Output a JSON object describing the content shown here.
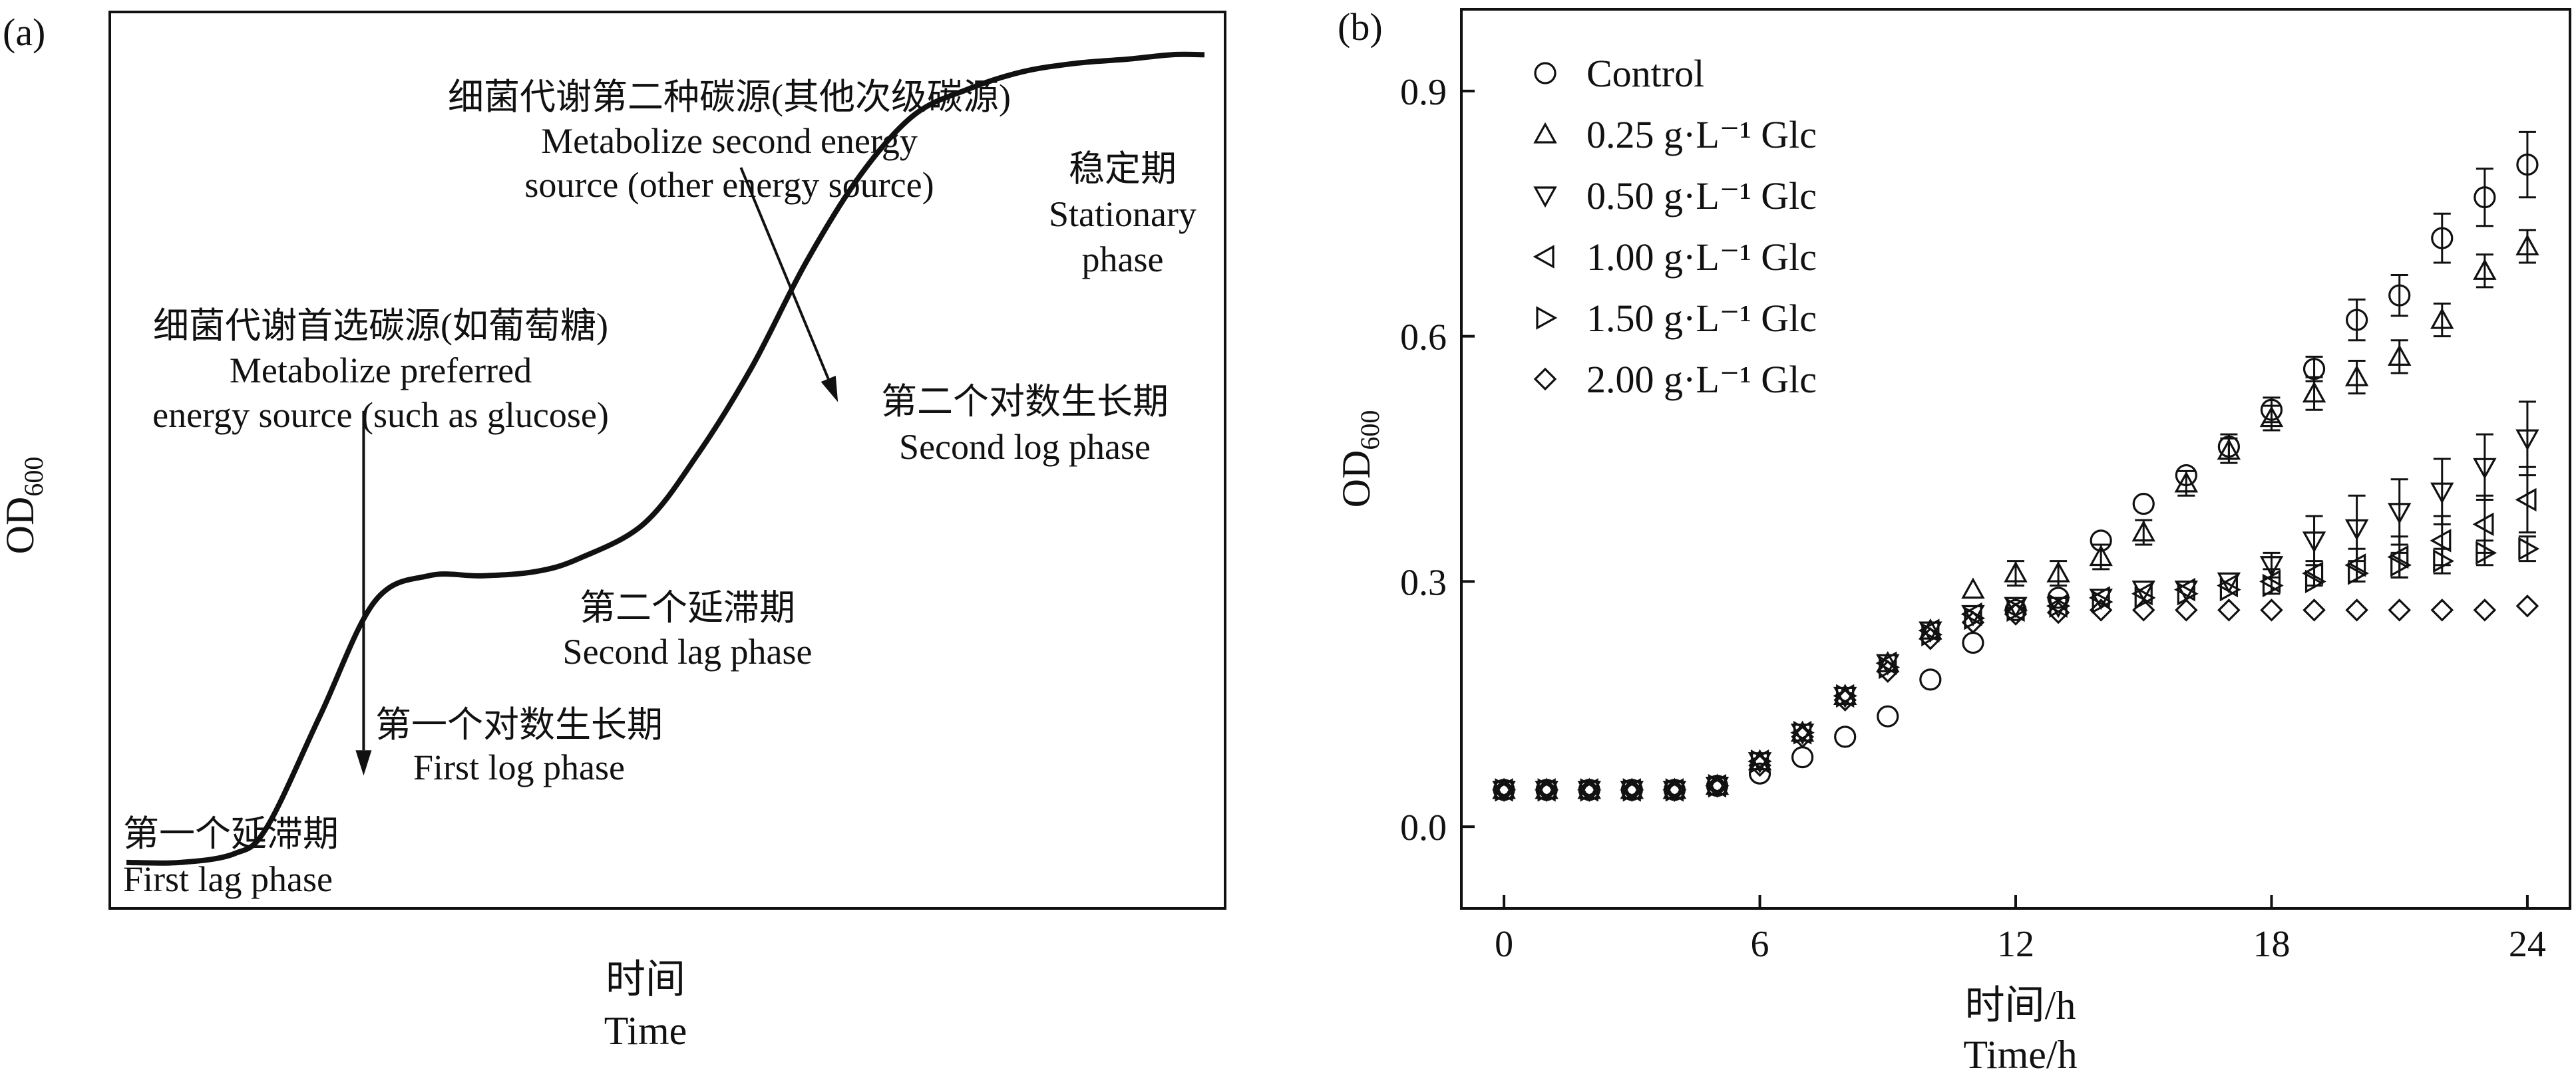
{
  "panel_a": {
    "label": "(a)",
    "ylabel": "OD",
    "ylabel_sub": "600",
    "xlabel_cn": "时间",
    "xlabel_en": "Time",
    "annotations": {
      "first_lag_cn": "第一个延滞期",
      "first_lag_en": "First lag phase",
      "first_log_cn": "第一个对数生长期",
      "first_log_en": "First log phase",
      "second_lag_cn": "第二个延滞期",
      "second_lag_en": "Second lag phase",
      "second_log_cn": "第二个对数生长期",
      "second_log_en": "Second log phase",
      "stationary_cn": "稳定期",
      "stationary_en1": "Stationary",
      "stationary_en2": "phase",
      "preferred_cn": "细菌代谢首选碳源(如葡萄糖)",
      "preferred_en1": "Metabolize preferred",
      "preferred_en2": "energy source (such as glucose)",
      "second_src_cn": "细菌代谢第二种碳源(其他次级碳源)",
      "second_src_en1": "Metabolize second energy",
      "second_src_en2": "source (other energy source)"
    }
  },
  "panel_b": {
    "label": "(b)",
    "ylabel": "OD",
    "ylabel_sub": "600",
    "xlabel_cn": "时间/h",
    "xlabel_en": "Time/h",
    "legend_units": "g·L⁻¹ Glc"
  },
  "chart_data": [
    {
      "type": "line",
      "panel": "a",
      "schematic": true,
      "x_ticks_shown": false,
      "y_ticks_shown": false,
      "curve": {
        "x": [
          0,
          0.05,
          0.1,
          0.13,
          0.18,
          0.23,
          0.28,
          0.33,
          0.38,
          0.42,
          0.48,
          0.53,
          0.58,
          0.63,
          0.68,
          0.73,
          0.78,
          0.83,
          0.88,
          0.93,
          0.97,
          1.0
        ],
        "y": [
          0.03,
          0.03,
          0.04,
          0.07,
          0.2,
          0.33,
          0.36,
          0.36,
          0.365,
          0.38,
          0.42,
          0.5,
          0.6,
          0.72,
          0.82,
          0.89,
          0.92,
          0.94,
          0.95,
          0.955,
          0.96,
          0.96
        ]
      },
      "arrows": [
        {
          "from": [
            0.22,
            0.55
          ],
          "to": [
            0.22,
            0.13
          ]
        },
        {
          "from": [
            0.57,
            0.83
          ],
          "to": [
            0.66,
            0.56
          ]
        }
      ]
    },
    {
      "type": "scatter",
      "panel": "b",
      "xlabel": "时间/h Time/h",
      "ylabel": "OD600",
      "xlim": [
        -1,
        25
      ],
      "ylim": [
        -0.1,
        1.0
      ],
      "x_ticks": [
        0,
        6,
        12,
        18,
        24
      ],
      "y_ticks": [
        0.0,
        0.3,
        0.6,
        0.9
      ],
      "legend_position": "top-left",
      "x": [
        0,
        1,
        2,
        3,
        4,
        5,
        6,
        7,
        8,
        9,
        10,
        11,
        12,
        13,
        14,
        15,
        16,
        17,
        18,
        19,
        20,
        21,
        22,
        23,
        24
      ],
      "series": [
        {
          "name": "Control",
          "marker": "circle",
          "values": [
            0.045,
            0.045,
            0.045,
            0.045,
            0.045,
            0.05,
            0.065,
            0.085,
            0.11,
            0.135,
            0.18,
            0.225,
            0.265,
            0.28,
            0.35,
            0.395,
            0.43,
            0.465,
            0.51,
            0.56,
            0.62,
            0.65,
            0.72,
            0.77,
            0.81
          ],
          "errors": [
            0.004,
            0.004,
            0.004,
            0.004,
            0.004,
            0.005,
            0.006,
            0.007,
            0.008,
            0.008,
            0.01,
            0.012,
            0.012,
            0.012,
            0.012,
            0.012,
            0.012,
            0.015,
            0.015,
            0.015,
            0.025,
            0.025,
            0.03,
            0.035,
            0.04
          ]
        },
        {
          "name": "0.25 g·L⁻¹ Glc",
          "marker": "triangle-up",
          "values": [
            0.045,
            0.045,
            0.045,
            0.045,
            0.045,
            0.05,
            0.08,
            0.115,
            0.16,
            0.2,
            0.24,
            0.29,
            0.31,
            0.31,
            0.33,
            0.36,
            0.42,
            0.46,
            0.5,
            0.53,
            0.55,
            0.575,
            0.62,
            0.68,
            0.71
          ],
          "errors": [
            0.004,
            0.004,
            0.004,
            0.004,
            0.004,
            0.005,
            0.006,
            0.008,
            0.008,
            0.01,
            0.012,
            0.012,
            0.015,
            0.015,
            0.015,
            0.015,
            0.015,
            0.015,
            0.015,
            0.02,
            0.02,
            0.02,
            0.02,
            0.02,
            0.02
          ]
        },
        {
          "name": "0.50 g·L⁻¹ Glc",
          "marker": "triangle-down",
          "values": [
            0.045,
            0.045,
            0.045,
            0.045,
            0.045,
            0.05,
            0.08,
            0.115,
            0.16,
            0.2,
            0.24,
            0.26,
            0.27,
            0.27,
            0.28,
            0.29,
            0.29,
            0.3,
            0.32,
            0.35,
            0.365,
            0.385,
            0.41,
            0.44,
            0.475
          ],
          "errors": [
            0.004,
            0.004,
            0.004,
            0.004,
            0.004,
            0.005,
            0.006,
            0.008,
            0.008,
            0.01,
            0.012,
            0.012,
            0.012,
            0.012,
            0.012,
            0.012,
            0.012,
            0.012,
            0.015,
            0.03,
            0.04,
            0.04,
            0.04,
            0.04,
            0.045
          ]
        },
        {
          "name": "1.00 g·L⁻¹ Glc",
          "marker": "triangle-left",
          "values": [
            0.045,
            0.045,
            0.045,
            0.045,
            0.045,
            0.05,
            0.08,
            0.115,
            0.16,
            0.2,
            0.24,
            0.26,
            0.265,
            0.27,
            0.28,
            0.285,
            0.29,
            0.295,
            0.3,
            0.31,
            0.32,
            0.33,
            0.35,
            0.37,
            0.4
          ],
          "errors": [
            0.004,
            0.004,
            0.004,
            0.004,
            0.004,
            0.005,
            0.006,
            0.008,
            0.008,
            0.01,
            0.012,
            0.012,
            0.012,
            0.012,
            0.012,
            0.012,
            0.012,
            0.012,
            0.015,
            0.015,
            0.02,
            0.025,
            0.03,
            0.035,
            0.04
          ]
        },
        {
          "name": "1.50 g·L⁻¹ Glc",
          "marker": "triangle-right",
          "values": [
            0.045,
            0.045,
            0.045,
            0.045,
            0.045,
            0.05,
            0.08,
            0.115,
            0.16,
            0.195,
            0.235,
            0.255,
            0.265,
            0.27,
            0.275,
            0.28,
            0.285,
            0.29,
            0.295,
            0.3,
            0.31,
            0.32,
            0.325,
            0.335,
            0.34
          ],
          "errors": [
            0.004,
            0.004,
            0.004,
            0.004,
            0.004,
            0.005,
            0.006,
            0.008,
            0.008,
            0.01,
            0.01,
            0.01,
            0.01,
            0.01,
            0.01,
            0.01,
            0.01,
            0.01,
            0.01,
            0.01,
            0.01,
            0.015,
            0.015,
            0.015,
            0.015
          ]
        },
        {
          "name": "2.00 g·L⁻¹ Glc",
          "marker": "diamond",
          "values": [
            0.045,
            0.045,
            0.045,
            0.045,
            0.045,
            0.05,
            0.075,
            0.11,
            0.155,
            0.19,
            0.23,
            0.25,
            0.26,
            0.262,
            0.265,
            0.265,
            0.265,
            0.265,
            0.265,
            0.265,
            0.265,
            0.265,
            0.265,
            0.265,
            0.27
          ],
          "errors": [
            0.004,
            0.004,
            0.004,
            0.004,
            0.004,
            0.005,
            0.006,
            0.008,
            0.008,
            0.008,
            0.008,
            0.008,
            0.008,
            0.008,
            0.008,
            0.008,
            0.008,
            0.008,
            0.008,
            0.008,
            0.008,
            0.008,
            0.008,
            0.008,
            0.008
          ]
        }
      ]
    }
  ]
}
